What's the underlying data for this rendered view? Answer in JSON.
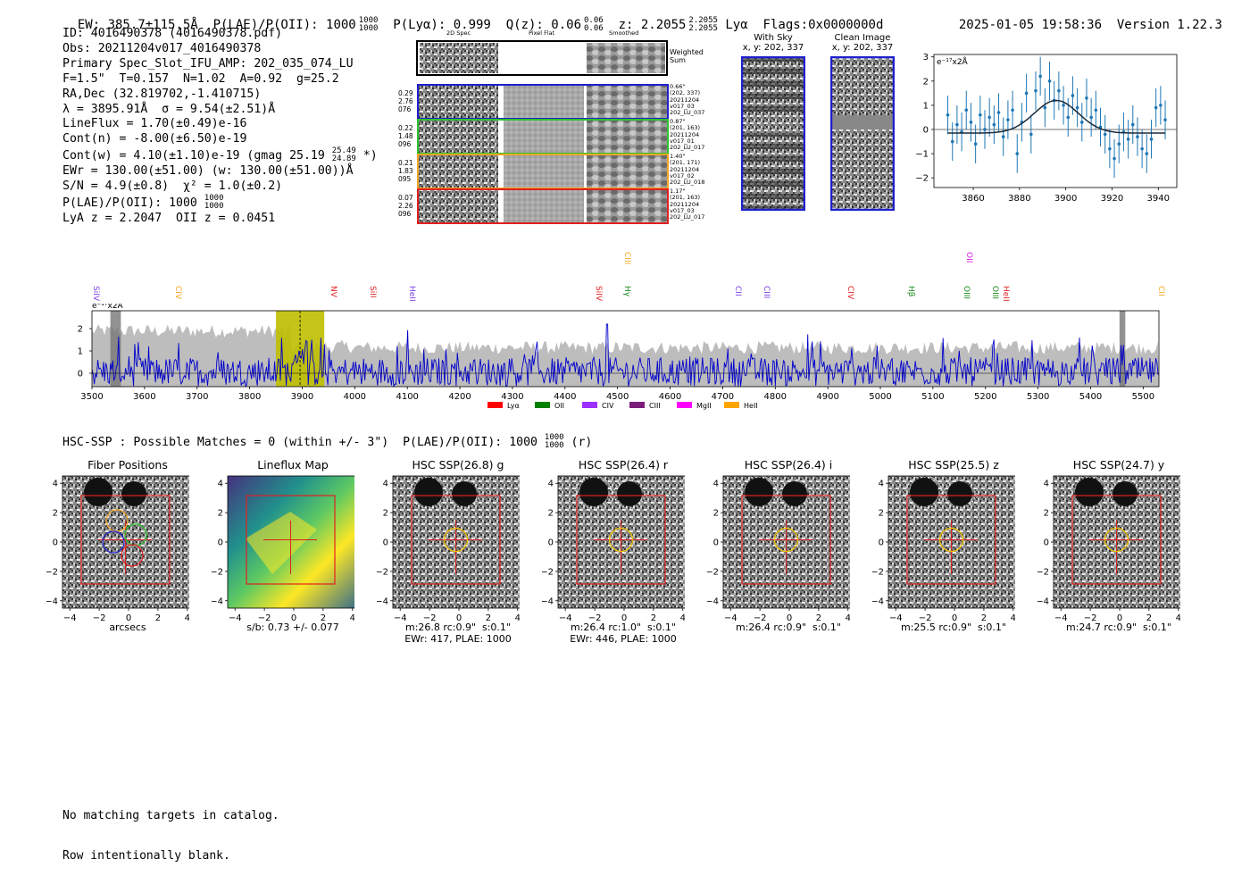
{
  "header": {
    "ew": "EW: 385.7±115.5Å",
    "plae_label": "P(LAE)/P(OII): 1000",
    "plae_hi": "1000",
    "plae_lo": "1000",
    "plya": "P(Lyα): 0.999",
    "qz_label": "Q(z): 0.06",
    "qz_hi": "0.06",
    "qz_lo": "0.06",
    "z_label": "z: 2.2055",
    "z_hi": "2.2055",
    "z_lo": "2.2055",
    "z_line": "Lyα",
    "flags": "Flags:0x0000000d",
    "timestamp": "2025-01-05 19:58:36",
    "version": "Version 1.22.3"
  },
  "info": {
    "id": "ID: 4016490378 (4016490378.pdf)",
    "obs": "Obs: 20211204v017_4016490378",
    "primary": "Primary Spec_Slot_IFU_AMP: 202_035_074_LU",
    "fit": "F=1.5\"  T=0.157  N=1.02  A=0.92  g=25.2",
    "radec": "RA,Dec (32.819702,-1.410715)",
    "lambda": "λ = 3895.91Å  σ = 9.54(±2.51)Å",
    "lineflux": "LineFlux = 1.70(±0.49)e-16",
    "contn": "Cont(n) = -8.00(±6.50)e-19",
    "contw_a": "Cont(w) = 4.10(±1.10)e-19 (gmag 25.19",
    "contw_hi": "25.49",
    "contw_lo": "24.89",
    "contw_b": " *)",
    "ewr": "EWr = 130.00(±51.00) (w: 130.00(±51.00))Å",
    "sn": "S/N = 4.9(±0.8)  χ² = 1.0(±0.2)",
    "plae": "P(LAE)/P(OII): 1000",
    "plae_hi": "1000",
    "plae_lo": "1000",
    "lyaz": "LyA z = 2.2047  OII z = 0.0451"
  },
  "cutouts": {
    "col_2d": "2D Spec",
    "col_flat": "Pixel Flat",
    "col_smooth": "Smoothed",
    "weighted": "Weighted\nSum",
    "rows": [
      {
        "left": "0.29\n2.76\n076",
        "right": "0.66\"\n(202, 337)\n20211204\nv017_03\n202_LU_037",
        "color": "#1f1fcf"
      },
      {
        "left": "0.22\n1.48\n096",
        "right": "0.87\"\n(201, 163)\n20211204\nv017_01\n202_LU_017",
        "color": "#2bc42b"
      },
      {
        "left": "0.21\n1.83\n095",
        "right": "1.40\"\n(201, 171)\n20211204\nv017_02\n202_LU_018",
        "color": "#f5a623"
      },
      {
        "left": "0.07\n2.26\n096",
        "right": "1.17\"\n(201, 163)\n20211204\nv017_03\n202_LU_017",
        "color": "#e02020"
      }
    ]
  },
  "sky": {
    "with_sky_title": "With Sky",
    "with_sky_xy": "x, y: 202, 337",
    "clean_title": "Clean Image",
    "clean_xy": "x, y: 202, 337"
  },
  "fit_chart": {
    "unit_label": "e⁻¹⁷x2Å",
    "xticks": [
      "3860",
      "3880",
      "3900",
      "3920",
      "3940"
    ],
    "yticks": [
      "3",
      "2",
      "1",
      "0",
      "−1",
      "−2"
    ]
  },
  "spectrum": {
    "unit_label": "e⁻¹⁷x2Å",
    "xticks": [
      "3500",
      "3600",
      "3700",
      "3800",
      "3900",
      "4000",
      "4100",
      "4200",
      "4300",
      "4400",
      "4500",
      "4600",
      "4700",
      "4800",
      "4900",
      "5000",
      "5100",
      "5200",
      "5300",
      "5400",
      "5500"
    ],
    "yticks": [
      "2",
      "1",
      "0"
    ],
    "lines": [
      {
        "name": "SiIV",
        "wl": 3524,
        "color": "#7b3fe4",
        "row": 0
      },
      {
        "name": "CIV",
        "wl": 3680,
        "color": "#f5a623",
        "row": 0
      },
      {
        "name": "NV",
        "wl": 3975,
        "color": "#e02020",
        "row": 0
      },
      {
        "name": "SiII",
        "wl": 4050,
        "color": "#e02020",
        "row": 0
      },
      {
        "name": "HeII",
        "wl": 4125,
        "color": "#7b3fe4",
        "row": 0
      },
      {
        "name": "SiIV",
        "wl": 4480,
        "color": "#e02020",
        "row": 0
      },
      {
        "name": "CIII",
        "wl": 4535,
        "color": "#f5a623",
        "row": 1
      },
      {
        "name": "Hγ",
        "wl": 4535,
        "color": "#1a8a1a",
        "row": 0
      },
      {
        "name": "CII",
        "wl": 4745,
        "color": "#7b3fe4",
        "row": 0
      },
      {
        "name": "CIII",
        "wl": 4800,
        "color": "#7b3fe4",
        "row": 0
      },
      {
        "name": "CIV",
        "wl": 4960,
        "color": "#e02020",
        "row": 0
      },
      {
        "name": "Hβ",
        "wl": 5075,
        "color": "#1a8a1a",
        "row": 0
      },
      {
        "name": "OIII",
        "wl": 5180,
        "color": "#1a8a1a",
        "row": 0
      },
      {
        "name": "OII",
        "wl": 5185,
        "color": "#e020e0",
        "row": 1
      },
      {
        "name": "OIII",
        "wl": 5235,
        "color": "#1a8a1a",
        "row": 0
      },
      {
        "name": "HeII",
        "wl": 5255,
        "color": "#e02020",
        "row": 0
      },
      {
        "name": "CII",
        "wl": 5550,
        "color": "#f5a623",
        "row": 0
      }
    ],
    "legend": [
      {
        "label": "Lyα",
        "color": "#ff0000"
      },
      {
        "label": "OII",
        "color": "#008000"
      },
      {
        "label": "CIV",
        "color": "#9b30ff"
      },
      {
        "label": "CIII",
        "color": "#7b1f7b"
      },
      {
        "label": "MgII",
        "color": "#ff00ff"
      },
      {
        "label": "HeII",
        "color": "#ffa500"
      }
    ]
  },
  "hsc": {
    "summary_a": "HSC-SSP : Possible Matches = 0 (within +/- 3\")  P(LAE)/P(OII): 1000",
    "summary_hi": "1000",
    "summary_lo": "1000",
    "summary_b": " (r)",
    "axis_ticks": [
      "4",
      "2",
      "0",
      "−2",
      "−4"
    ],
    "x_ticks": [
      "−4",
      "−2",
      "0",
      "2",
      "4"
    ],
    "panels": [
      {
        "title": "Fiber Positions",
        "caption": "arcsecs"
      },
      {
        "title": "Lineflux Map",
        "caption": "s/b: 0.73 +/- 0.077"
      },
      {
        "title": "HSC SSP(26.8) g",
        "caption": "m:26.8 rc:0.9\"  s:0.1\"\nEWr: 417, PLAE: 1000"
      },
      {
        "title": "HSC SSP(26.4) r",
        "caption": "m:26.4 rc:1.0\"  s:0.1\"\nEWr: 446, PLAE: 1000"
      },
      {
        "title": "HSC SSP(26.4) i",
        "caption": "m:26.4 rc:0.9\"  s:0.1\""
      },
      {
        "title": "HSC SSP(25.5) z",
        "caption": "m:25.5 rc:0.9\"  s:0.1\""
      },
      {
        "title": "HSC SSP(24.7) y",
        "caption": "m:24.7 rc:0.9\"  s:0.1\""
      }
    ]
  },
  "footer": {
    "line1": "No matching targets in catalog.",
    "line2": "Row intentionally blank."
  },
  "chart_data": [
    {
      "type": "scatter",
      "xlabel": "",
      "ylabel": "e⁻¹⁷x2Å",
      "xlim": [
        3843,
        3948
      ],
      "ylim": [
        -2.4,
        3.1
      ],
      "points": [
        [
          3849,
          0.6
        ],
        [
          3851,
          -0.5
        ],
        [
          3853,
          0.2
        ],
        [
          3855,
          -0.1
        ],
        [
          3857,
          0.8
        ],
        [
          3859,
          0.3
        ],
        [
          3861,
          -0.6
        ],
        [
          3863,
          0.6
        ],
        [
          3865,
          0.0
        ],
        [
          3867,
          0.5
        ],
        [
          3869,
          0.2
        ],
        [
          3871,
          0.7
        ],
        [
          3873,
          -0.3
        ],
        [
          3875,
          0.4
        ],
        [
          3877,
          0.8
        ],
        [
          3879,
          -1.0
        ],
        [
          3881,
          0.3
        ],
        [
          3883,
          1.5
        ],
        [
          3885,
          -0.2
        ],
        [
          3887,
          1.6
        ],
        [
          3889,
          2.2
        ],
        [
          3891,
          0.9
        ],
        [
          3893,
          2.0
        ],
        [
          3895,
          1.2
        ],
        [
          3897,
          1.6
        ],
        [
          3899,
          1.0
        ],
        [
          3901,
          0.5
        ],
        [
          3903,
          1.4
        ],
        [
          3905,
          0.9
        ],
        [
          3907,
          0.3
        ],
        [
          3909,
          1.3
        ],
        [
          3911,
          0.5
        ],
        [
          3913,
          0.8
        ],
        [
          3915,
          0.1
        ],
        [
          3917,
          -0.2
        ],
        [
          3919,
          -0.8
        ],
        [
          3921,
          -1.2
        ],
        [
          3923,
          -0.6
        ],
        [
          3925,
          -0.1
        ],
        [
          3927,
          -0.4
        ],
        [
          3929,
          0.2
        ],
        [
          3931,
          -0.3
        ],
        [
          3933,
          -0.8
        ],
        [
          3935,
          -1.0
        ],
        [
          3937,
          -0.4
        ],
        [
          3939,
          0.9
        ],
        [
          3941,
          1.0
        ],
        [
          3943,
          0.4
        ]
      ],
      "fit": {
        "type": "gaussian",
        "center": 3895.91,
        "sigma": 9.54,
        "amplitude": 1.35,
        "baseline": -0.15
      }
    },
    {
      "type": "line",
      "xlabel": "",
      "ylabel": "e⁻¹⁷x2Å",
      "xlim": [
        3500,
        5530
      ],
      "ylim": [
        -0.6,
        2.8
      ],
      "series": [],
      "highlight": {
        "x": 3895.91,
        "range": [
          3850,
          3942
        ]
      },
      "masked": [
        [
          3535,
          3555
        ],
        [
          5455,
          5466
        ]
      ]
    }
  ]
}
